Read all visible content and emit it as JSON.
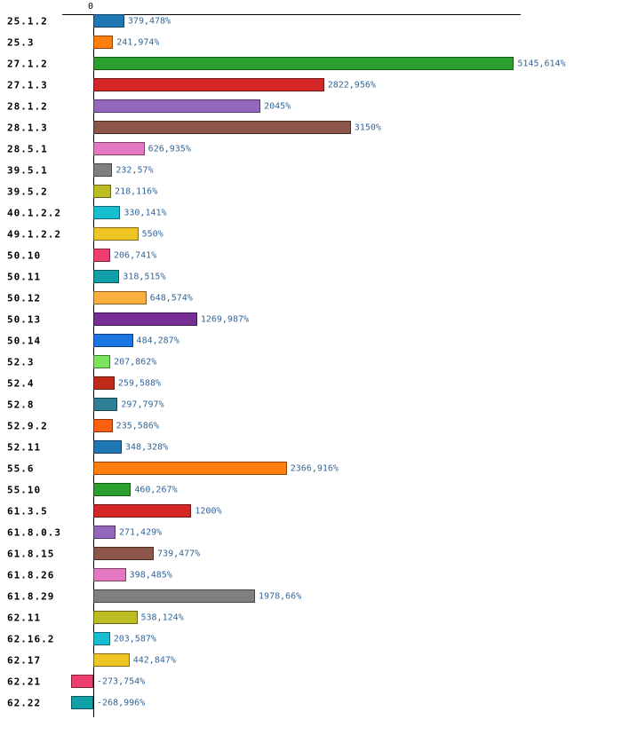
{
  "chart_data": {
    "type": "bar",
    "orientation": "horizontal",
    "title": "",
    "axis_zero_label": "0",
    "unit": "%",
    "decimal_separator": ",",
    "legend": "none",
    "grid": "off",
    "xlim": [
      -400,
      5400
    ],
    "categories": [
      "25.1.2",
      "25.3",
      "27.1.2",
      "27.1.3",
      "28.1.2",
      "28.1.3",
      "28.5.1",
      "39.5.1",
      "39.5.2",
      "40.1.2.2",
      "49.1.2.2",
      "50.10",
      "50.11",
      "50.12",
      "50.13",
      "50.14",
      "52.3",
      "52.4",
      "52.8",
      "52.9.2",
      "52.11",
      "55.6",
      "55.10",
      "61.3.5",
      "61.8.0.3",
      "61.8.15",
      "61.8.26",
      "61.8.29",
      "62.11",
      "62.16.2",
      "62.17",
      "62.21",
      "62.22"
    ],
    "values": [
      379.478,
      241.974,
      5145.614,
      2822.956,
      2045,
      3150,
      626.935,
      232.57,
      218.116,
      330.141,
      550,
      206.741,
      318.515,
      648.574,
      1269.987,
      484.287,
      207.862,
      259.588,
      297.797,
      235.586,
      348.328,
      2366.916,
      460.267,
      1200,
      271.429,
      739.477,
      398.485,
      1978.66,
      538.124,
      203.587,
      442.847,
      -273.754,
      -268.996
    ],
    "value_labels": [
      "379,478%",
      "241,974%",
      "5145,614%",
      "2822,956%",
      "2045%",
      "3150%",
      "626,935%",
      "232,57%",
      "218,116%",
      "330,141%",
      "550%",
      "206,741%",
      "318,515%",
      "648,574%",
      "1269,987%",
      "484,287%",
      "207,862%",
      "259,588%",
      "297,797%",
      "235,586%",
      "348,328%",
      "2366,916%",
      "460,267%",
      "1200%",
      "271,429%",
      "739,477%",
      "398,485%",
      "1978,66%",
      "538,124%",
      "203,587%",
      "442,847%",
      "-273,754%",
      "-268,996%"
    ],
    "colors": [
      "#1f77b4",
      "#ff7f0e",
      "#2ca02c",
      "#d62728",
      "#9467bd",
      "#8c564b",
      "#e377c2",
      "#7f7f7f",
      "#bcbd22",
      "#17becf",
      "#eec424",
      "#ee3d6f",
      "#11a0a8",
      "#fbaf3f",
      "#762d94",
      "#1b75e3",
      "#7ce35c",
      "#bf2b18",
      "#2e7f96",
      "#fa5f0f",
      "#1f77b4",
      "#ff7f0e",
      "#2ca02c",
      "#d62728",
      "#9467bd",
      "#8c564b",
      "#e377c2",
      "#7f7f7f",
      "#bcbd22",
      "#17becf",
      "#eec424",
      "#ee3d6f",
      "#11a0a8"
    ],
    "value_label_color": "#336699",
    "category_label_color": "#000000"
  }
}
